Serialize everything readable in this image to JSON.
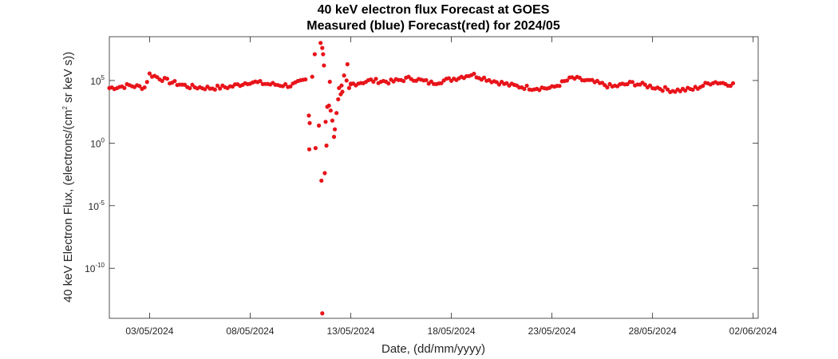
{
  "chart_data": {
    "type": "scatter",
    "title": "40 keV electron flux Forecast at GOES",
    "subtitle": "Measured (blue) Forecast(red) for 2024/05",
    "xlabel": "Date, (dd/mm/yyyy)",
    "ylabel_pre": "40 keV Electron Flux, (electrons/(cm",
    "ylabel_sup": "2",
    "ylabel_post": " sr keV s))",
    "y_scale": "log",
    "grid": false,
    "xlim": [
      "2024-05-01",
      "2024-06-02T06:00"
    ],
    "ylim_log10": [
      -14,
      8.5
    ],
    "x_ticks": [
      "03/05/2024",
      "08/05/2024",
      "13/05/2024",
      "18/05/2024",
      "23/05/2024",
      "28/05/2024",
      "02/06/2024"
    ],
    "y_ticks": [
      {
        "base": "10",
        "exp": "5"
      },
      {
        "base": "10",
        "exp": "0"
      },
      {
        "base": "10",
        "exp": "-5"
      },
      {
        "base": "10",
        "exp": "-10"
      }
    ],
    "marker_color": "#e8141a",
    "baseline_log10_flux": [
      {
        "date": "2024-05-01",
        "log10": 4.4
      },
      {
        "date": "2024-05-02",
        "log10": 4.6
      },
      {
        "date": "2024-05-02T18:00",
        "log10": 4.45
      },
      {
        "date": "2024-05-03",
        "log10": 5.5
      },
      {
        "date": "2024-05-04",
        "log10": 4.9
      },
      {
        "date": "2024-05-05",
        "log10": 4.5
      },
      {
        "date": "2024-05-06",
        "log10": 4.4
      },
      {
        "date": "2024-05-07",
        "log10": 4.5
      },
      {
        "date": "2024-05-08",
        "log10": 4.9
      },
      {
        "date": "2024-05-09",
        "log10": 4.7
      },
      {
        "date": "2024-05-10",
        "log10": 4.6
      },
      {
        "date": "2024-05-10T18:00",
        "log10": 5.0
      },
      {
        "date": "2024-05-12",
        "log10": 4.9
      },
      {
        "date": "2024-05-13",
        "log10": 4.7
      },
      {
        "date": "2024-05-14",
        "log10": 5.0
      },
      {
        "date": "2024-05-15",
        "log10": 4.9
      },
      {
        "date": "2024-05-16",
        "log10": 5.2
      },
      {
        "date": "2024-05-17",
        "log10": 4.8
      },
      {
        "date": "2024-05-18",
        "log10": 5.1
      },
      {
        "date": "2024-05-19",
        "log10": 5.5
      },
      {
        "date": "2024-05-20",
        "log10": 5.0
      },
      {
        "date": "2024-05-21",
        "log10": 4.6
      },
      {
        "date": "2024-05-22",
        "log10": 4.4
      },
      {
        "date": "2024-05-23",
        "log10": 4.4
      },
      {
        "date": "2024-05-24",
        "log10": 5.2
      },
      {
        "date": "2024-05-25",
        "log10": 4.9
      },
      {
        "date": "2024-05-26",
        "log10": 4.5
      },
      {
        "date": "2024-05-27",
        "log10": 4.8
      },
      {
        "date": "2024-05-28",
        "log10": 4.5
      },
      {
        "date": "2024-05-29",
        "log10": 4.2
      },
      {
        "date": "2024-05-30",
        "log10": 4.3
      },
      {
        "date": "2024-05-31",
        "log10": 4.9
      },
      {
        "date": "2024-06-01",
        "log10": 4.7
      }
    ],
    "storm_points": [
      {
        "date": "2024-05-11T12:00",
        "log10": 8.0
      },
      {
        "date": "2024-05-11T14:00",
        "log10": 7.6
      },
      {
        "date": "2024-05-11T15:00",
        "log10": 7.1
      },
      {
        "date": "2024-05-11T16:00",
        "log10": 6.2
      },
      {
        "date": "2024-05-11T05:00",
        "log10": 7.1
      },
      {
        "date": "2024-05-11T02:00",
        "log10": 5.3
      },
      {
        "date": "2024-05-10T22:00",
        "log10": 2.2
      },
      {
        "date": "2024-05-10T23:00",
        "log10": 1.6
      },
      {
        "date": "2024-05-10T22:30",
        "log10": -0.5
      },
      {
        "date": "2024-05-11T06:00",
        "log10": -0.4
      },
      {
        "date": "2024-05-11T10:00",
        "log10": 1.4
      },
      {
        "date": "2024-05-11T13:00",
        "log10": -3.0
      },
      {
        "date": "2024-05-11T17:00",
        "log10": -2.4
      },
      {
        "date": "2024-05-11T14:00",
        "log10": -13.6
      },
      {
        "date": "2024-05-11T19:00",
        "log10": -0.2
      },
      {
        "date": "2024-05-11T18:00",
        "log10": 1.7
      },
      {
        "date": "2024-05-11T20:00",
        "log10": 2.9
      },
      {
        "date": "2024-05-11T22:00",
        "log10": 3.0
      },
      {
        "date": "2024-05-12T00:00",
        "log10": 2.6
      },
      {
        "date": "2024-05-12T02:00",
        "log10": 1.8
      },
      {
        "date": "2024-05-12T04:00",
        "log10": 0.5
      },
      {
        "date": "2024-05-12T05:00",
        "log10": 1.1
      },
      {
        "date": "2024-05-12T07:00",
        "log10": 2.4
      },
      {
        "date": "2024-05-12T09:00",
        "log10": 3.5
      },
      {
        "date": "2024-05-12T12:00",
        "log10": 3.9
      },
      {
        "date": "2024-05-12T14:00",
        "log10": 4.1
      },
      {
        "date": "2024-05-12T16:00",
        "log10": 5.4
      },
      {
        "date": "2024-05-12T20:00",
        "log10": 6.3
      },
      {
        "date": "2024-05-12T19:00",
        "log10": 5.0
      },
      {
        "date": "2024-05-12T22:00",
        "log10": 4.4
      },
      {
        "date": "2024-05-13T00:00",
        "log10": 4.7
      },
      {
        "date": "2024-05-12T13:00",
        "log10": 4.6
      },
      {
        "date": "2024-05-11T23:00",
        "log10": 4.9
      },
      {
        "date": "2024-05-12T10:00",
        "log10": 4.4
      }
    ]
  }
}
